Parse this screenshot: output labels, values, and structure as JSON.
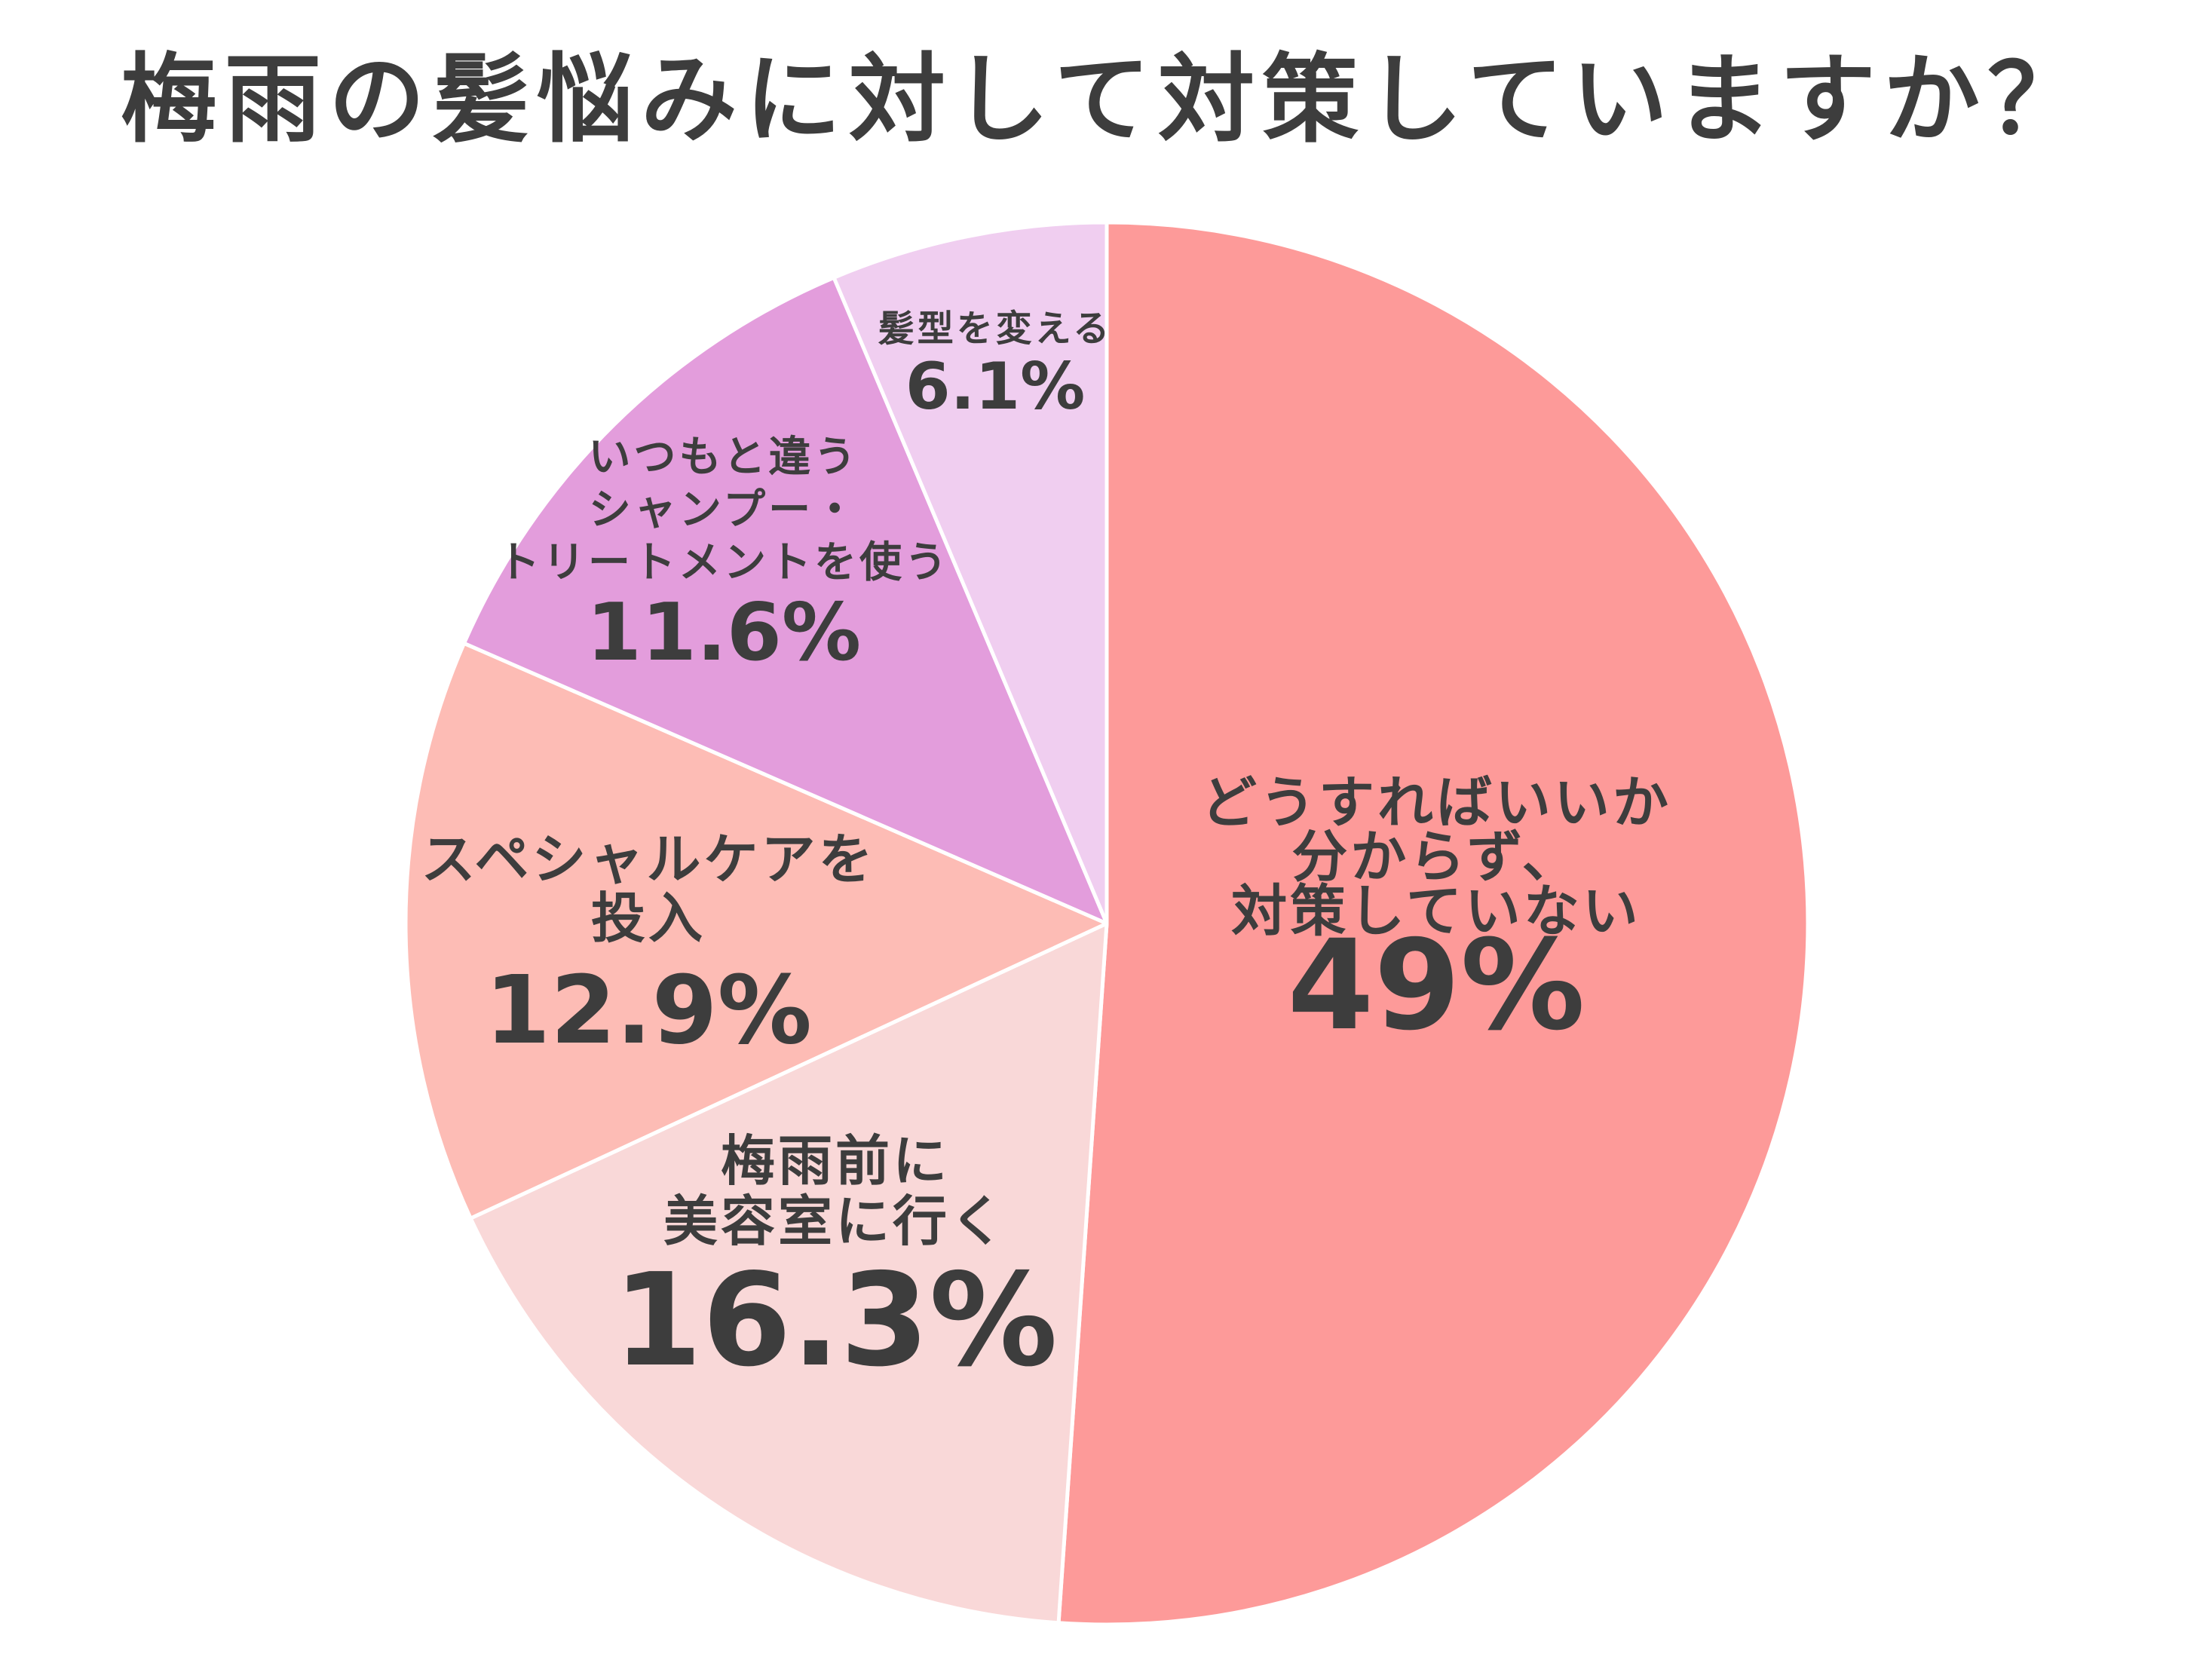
{
  "chart_data": {
    "type": "pie",
    "title": "梅雨の髪悩みに対して対策していますか？",
    "start_angle_deg": 0,
    "direction": "clockwise",
    "slices": [
      {
        "label_lines": [
          "どうすればいいか",
          "分からず、",
          "対策していない"
        ],
        "value": 49,
        "value_label": "49%",
        "color": "#fd9a99"
      },
      {
        "label_lines": [
          "梅雨前に",
          "美容室に行く"
        ],
        "value": 16.3,
        "value_label": "16.3%",
        "color": "#f9d8d8"
      },
      {
        "label_lines": [
          "スペシャルケアを",
          "投入"
        ],
        "value": 12.9,
        "value_label": "12.9%",
        "color": "#fdbcb5"
      },
      {
        "label_lines": [
          "いつもと違う",
          "シャンプー・",
          "トリートメントを使う"
        ],
        "value": 11.6,
        "value_label": "11.6%",
        "color": "#e39ddc"
      },
      {
        "label_lines": [
          "髪型を変える"
        ],
        "value": 6.1,
        "value_label": "6.1%",
        "color": "#f0cef0"
      }
    ]
  }
}
